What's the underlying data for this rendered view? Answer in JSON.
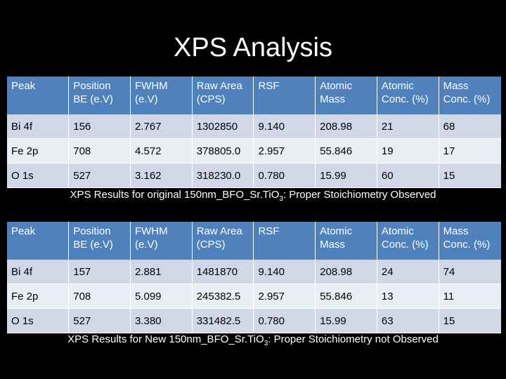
{
  "slide": {
    "title": "XPS Analysis"
  },
  "headers": [
    [
      "Peak"
    ],
    [
      "Position",
      "BE (e.V)"
    ],
    [
      "FWHM",
      "(e.V)"
    ],
    [
      "Raw Area",
      "(CPS)"
    ],
    [
      "RSF"
    ],
    [
      "Atomic",
      "Mass"
    ],
    [
      "Atomic",
      "Conc. (%)"
    ],
    [
      "Mass",
      "Conc. (%)"
    ]
  ],
  "table1": {
    "rows": [
      [
        "Bi 4f",
        "156",
        "2.767",
        "1302850",
        "9.140",
        "208.98",
        "21",
        "68"
      ],
      [
        "Fe 2p",
        "708",
        "4.572",
        "378805.0",
        "2.957",
        "55.846",
        "19",
        "17"
      ],
      [
        "O 1s",
        "527",
        "3.162",
        "318230.0",
        "0.780",
        "15.99",
        "60",
        "15"
      ]
    ],
    "caption": {
      "before": "XPS Results for original 150nm_BFO_Sr.TiO",
      "sub": "3",
      "after": ": Proper Stoichiometry Observed"
    }
  },
  "table2": {
    "rows": [
      [
        "Bi 4f",
        "157",
        "2.881",
        "1481870",
        "9.140",
        "208.98",
        "24",
        "74"
      ],
      [
        "Fe 2p",
        "708",
        "5.099",
        "245382.5",
        "2.957",
        "55.846",
        "13",
        "11"
      ],
      [
        "O 1s",
        "527",
        "3.380",
        "331482.5",
        "0.780",
        "15.99",
        "63",
        "15"
      ]
    ],
    "caption": {
      "before": "XPS Results for New 150nm_BFO_Sr.TiO",
      "sub": "3",
      "after": ": Proper Stoichiometry not Observed"
    }
  }
}
